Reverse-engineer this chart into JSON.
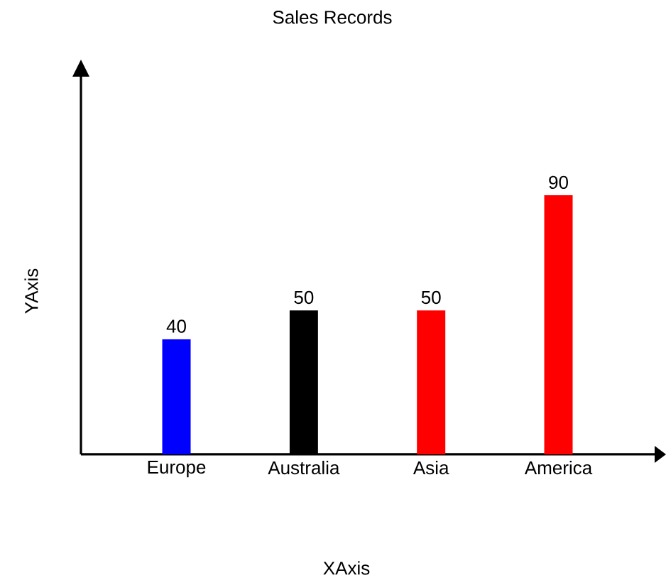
{
  "chart_data": {
    "type": "bar",
    "title": "Sales Records",
    "xlabel": "XAxis",
    "ylabel": "YAxis",
    "categories": [
      "Europe",
      "Australia",
      "Asia",
      "America"
    ],
    "values": [
      40,
      50,
      50,
      90
    ],
    "colors": [
      "#0000ff",
      "#000000",
      "#ff0000",
      "#ff0000"
    ],
    "data_labels": true
  }
}
